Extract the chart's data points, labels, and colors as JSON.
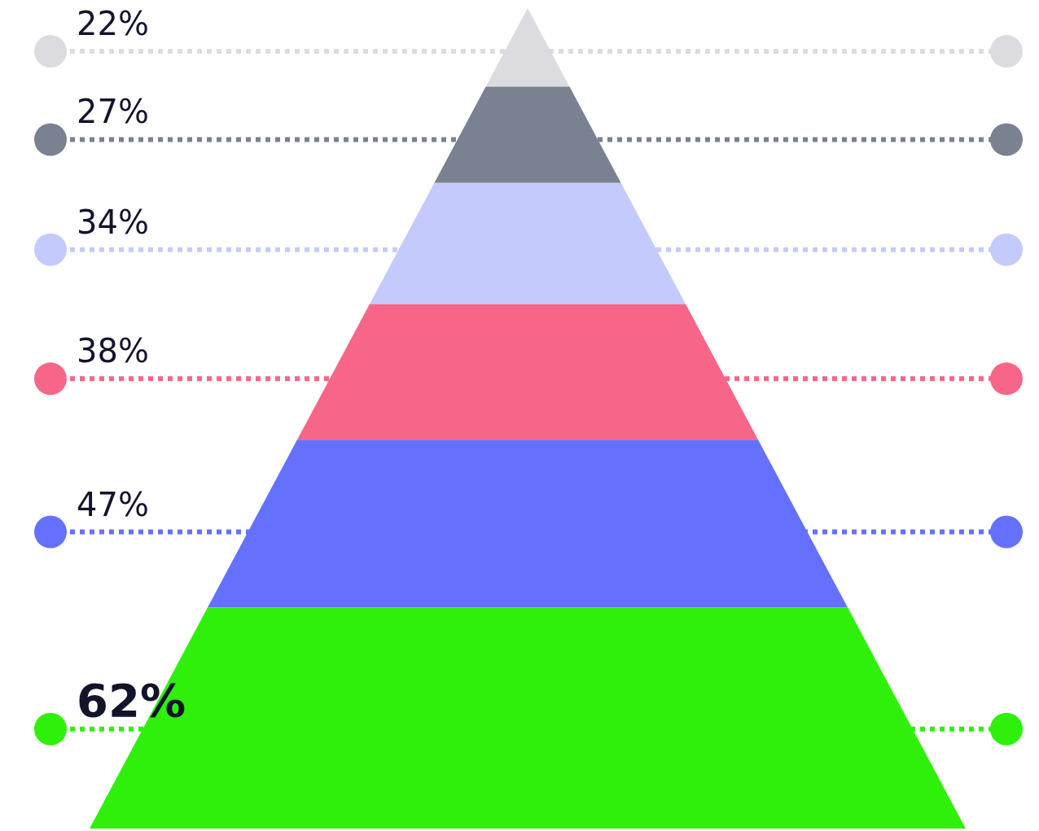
{
  "chart_data": {
    "type": "other",
    "values": [
      22,
      27,
      34,
      38,
      47,
      62
    ],
    "value_labels": [
      "22%",
      "27%",
      "34%",
      "38%",
      "47%",
      "62%"
    ],
    "colors": [
      "#dcdce0",
      "#7a8190",
      "#c5cafc",
      "#f76688",
      "#6571fd",
      "#2ff00a"
    ]
  }
}
